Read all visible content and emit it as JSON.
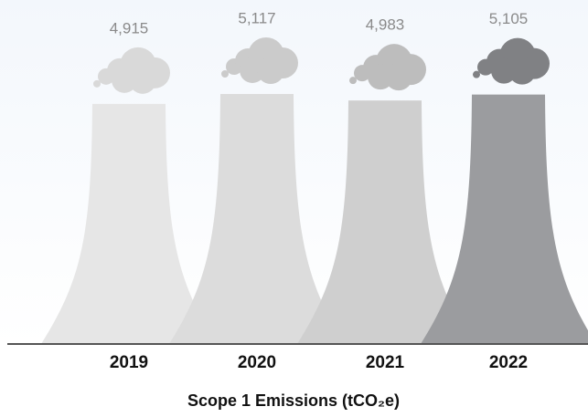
{
  "chart_data": {
    "type": "tower",
    "title": "Scope 1 Emissions (tCO₂e)",
    "categories": [
      "2019",
      "2020",
      "2021",
      "2022"
    ],
    "values": [
      4915,
      5117,
      4983,
      5105
    ],
    "value_labels": [
      "4,915",
      "5,117",
      "4,983",
      "5,105"
    ],
    "colors": [
      "#e6e6e6",
      "#dcdcdc",
      "#cfcfcf",
      "#9b9c9f"
    ],
    "smoke_colors": [
      "#d9d9d9",
      "#cbcbcb",
      "#bdbdbd",
      "#808184"
    ]
  }
}
